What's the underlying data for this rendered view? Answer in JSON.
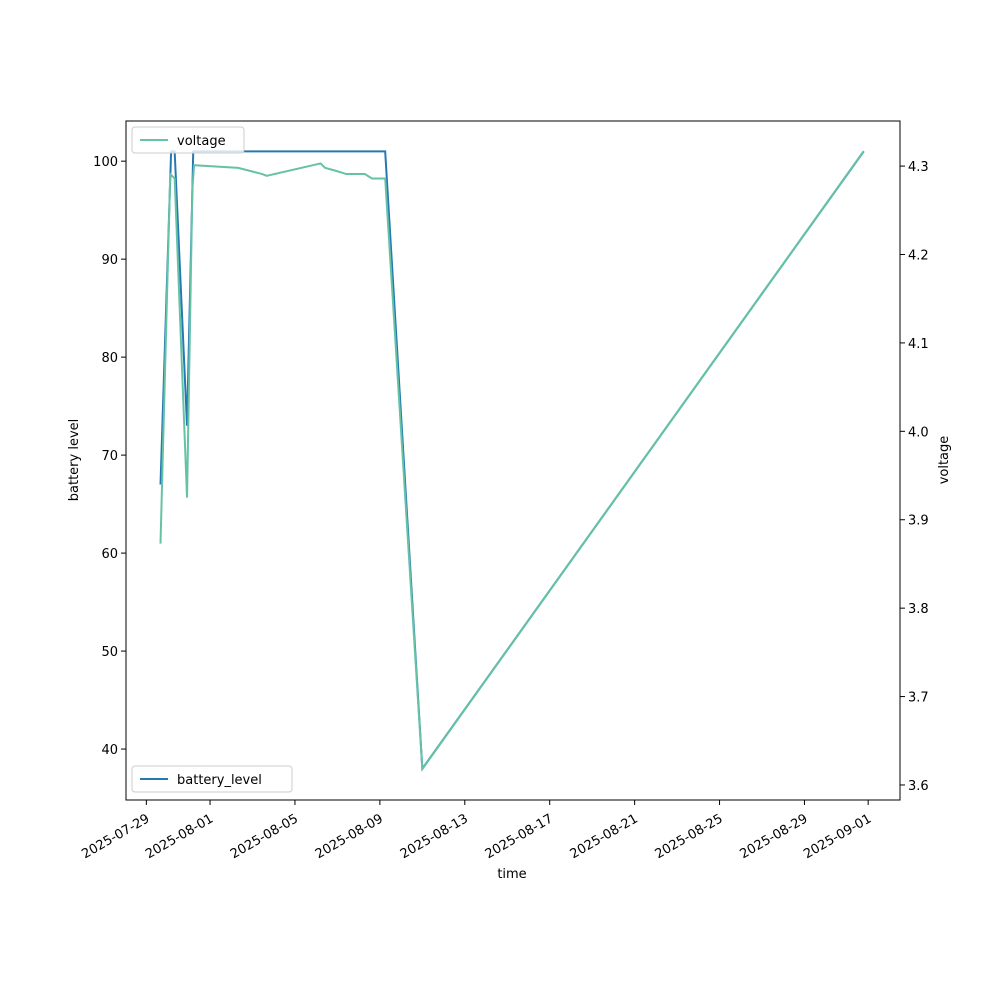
{
  "chart_data": {
    "type": "line",
    "xlabel": "time",
    "ylabel": "battery level",
    "y2label": "voltage",
    "xlim": [
      "2025-07-28T01:00",
      "2025-09-02T12:00"
    ],
    "xticks": [
      "2025-07-29",
      "2025-08-01",
      "2025-08-05",
      "2025-08-09",
      "2025-08-13",
      "2025-08-17",
      "2025-08-21",
      "2025-08-25",
      "2025-08-29",
      "2025-09-01"
    ],
    "ylim": [
      34.8,
      104.1
    ],
    "yticks": [
      40,
      50,
      60,
      70,
      80,
      90,
      100
    ],
    "y2lim": [
      3.583,
      4.351
    ],
    "y2ticks": [
      3.6,
      3.7,
      3.8,
      3.9,
      {
        "value": 4.0,
        "label": "4.0"
      },
      4.1,
      4.2,
      4.3
    ],
    "series": [
      {
        "name": "battery_level",
        "color": "#2678b2",
        "axis": "y",
        "legend": "lower left",
        "x": [
          "2025-07-29T16:00",
          "2025-07-30T04:00",
          "2025-07-30T08:00",
          "2025-07-30T22:00",
          "2025-07-31T05:00",
          "2025-08-09T06:00",
          "2025-08-11T00:00",
          "2025-08-31T19:00"
        ],
        "values": [
          67,
          101,
          101,
          73,
          101,
          101,
          38,
          101
        ]
      },
      {
        "name": "voltage",
        "color": "#66c2a5",
        "axis": "y2",
        "legend": "upper left",
        "x": [
          "2025-07-29T16:00",
          "2025-07-30T03:00",
          "2025-07-30T08:00",
          "2025-07-30T22:00",
          "2025-07-31T04:00",
          "2025-07-31T06:00",
          "2025-08-02T08:00",
          "2025-08-03T11:00",
          "2025-08-03T16:00",
          "2025-08-06T05:00",
          "2025-08-06T10:00",
          "2025-08-06T21:00",
          "2025-08-07T10:00",
          "2025-08-08T07:00",
          "2025-08-08T15:00",
          "2025-08-09T06:00",
          "2025-08-11T00:00",
          "2025-08-31T19:00"
        ],
        "values": [
          3.873,
          4.291,
          4.286,
          3.925,
          4.273,
          4.301,
          4.298,
          4.291,
          4.289,
          4.303,
          4.298,
          4.295,
          4.291,
          4.291,
          4.286,
          4.286,
          3.618,
          4.317
        ]
      }
    ]
  }
}
